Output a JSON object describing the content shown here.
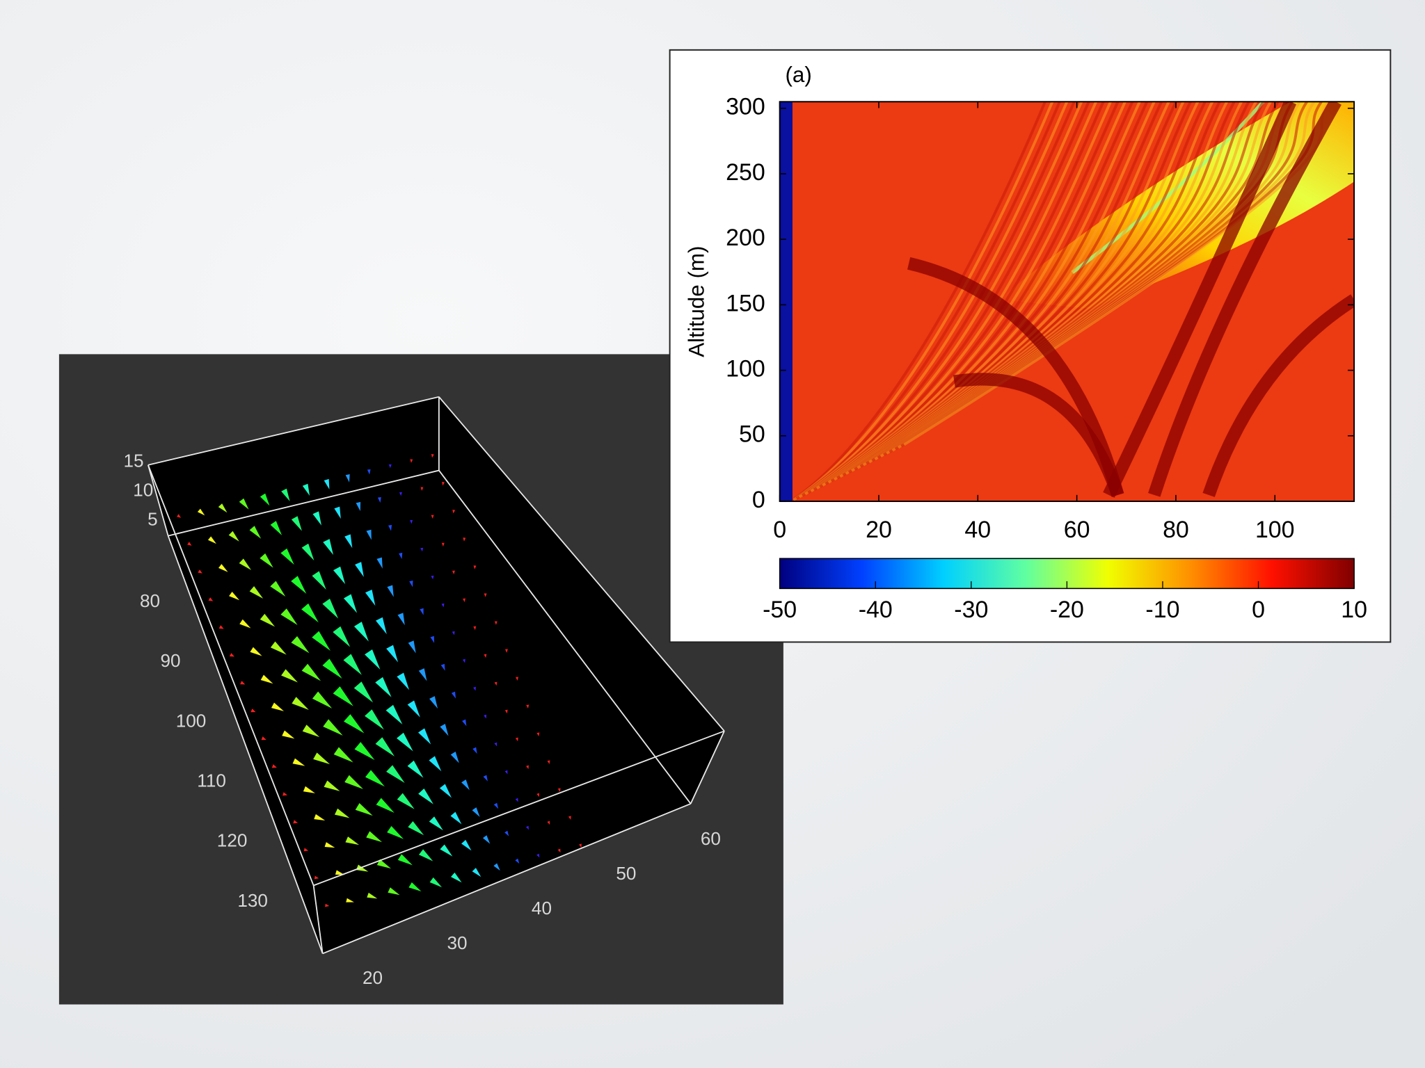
{
  "chart_data": [
    {
      "type": "quiver3d",
      "xticks": [
        20,
        30,
        40,
        50,
        60
      ],
      "yticks": [
        80,
        90,
        100,
        110,
        120,
        130
      ],
      "zticks": [
        5,
        10,
        15
      ]
    },
    {
      "type": "heatmap",
      "annotation": "(a)",
      "ylabel": "Altitude (m)",
      "xlim": [
        0,
        116
      ],
      "ylim": [
        0,
        305
      ],
      "xticks": [
        0,
        20,
        40,
        60,
        80,
        100
      ],
      "yticks": [
        0,
        50,
        100,
        150,
        200,
        250,
        300
      ],
      "colorbar": {
        "lim": [
          -50,
          10
        ],
        "ticks": [
          -50,
          -40,
          -30,
          -20,
          -10,
          0,
          10
        ],
        "colors": [
          "#00007f",
          "#0040ff",
          "#00d0ff",
          "#60ffa0",
          "#f0ff00",
          "#ff9000",
          "#ff1000",
          "#7f0000"
        ]
      }
    }
  ]
}
